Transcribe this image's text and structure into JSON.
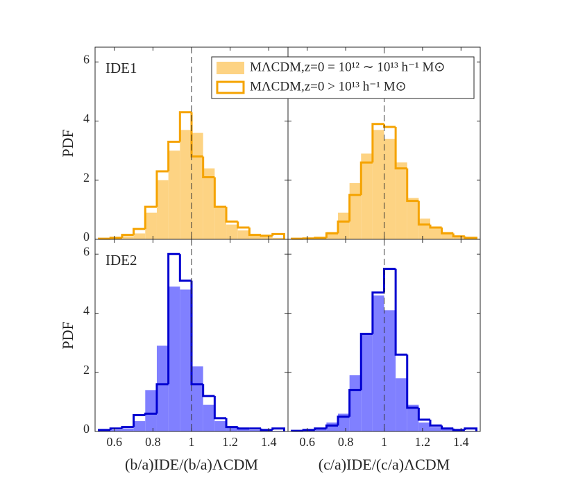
{
  "chart_data": [
    {
      "type": "histogram",
      "annotation": "IDE1",
      "ylabel": "PDF",
      "bins": [
        0.52,
        0.58,
        0.64,
        0.7,
        0.76,
        0.82,
        0.88,
        0.94,
        1.0,
        1.06,
        1.12,
        1.18,
        1.24,
        1.3,
        1.36,
        1.42,
        1.48
      ],
      "series": [
        {
          "name": "MΛCDM,z=0 = 10¹² ∼ 10¹³ h⁻¹ M⊙",
          "style": "filled",
          "color": "#fdd383",
          "values": [
            0.0,
            0.02,
            0.1,
            0.2,
            0.9,
            2.0,
            3.0,
            3.7,
            3.6,
            2.4,
            1.1,
            0.5,
            0.3,
            0.15,
            0.1,
            0.05
          ]
        },
        {
          "name": "MΛCDM,z=0 > 10¹³ h⁻¹ M⊙",
          "style": "step",
          "color": "#f5a300",
          "values": [
            0.02,
            0.05,
            0.15,
            0.35,
            1.1,
            2.3,
            3.3,
            4.3,
            2.8,
            2.1,
            1.1,
            0.6,
            0.4,
            0.15,
            0.12,
            0.18
          ]
        }
      ],
      "vline": 1,
      "xlim": [
        0.5,
        1.5
      ],
      "ylim": [
        0,
        6.5
      ],
      "xticks": [
        0.6,
        0.8,
        1,
        1.2,
        1.4
      ],
      "yticks": [
        0,
        2,
        4,
        6
      ]
    },
    {
      "type": "histogram",
      "bins": [
        0.52,
        0.58,
        0.64,
        0.7,
        0.76,
        0.82,
        0.88,
        0.94,
        1.0,
        1.06,
        1.12,
        1.18,
        1.24,
        1.3,
        1.36,
        1.42,
        1.48
      ],
      "series": [
        {
          "style": "filled",
          "color": "#fdd383",
          "values": [
            0.01,
            0.03,
            0.08,
            0.25,
            0.9,
            1.9,
            2.9,
            3.7,
            3.4,
            2.6,
            1.4,
            0.7,
            0.4,
            0.25,
            0.1,
            0.05
          ]
        },
        {
          "style": "step",
          "color": "#f5a300",
          "values": [
            0.02,
            0.03,
            0.05,
            0.2,
            0.6,
            1.5,
            2.6,
            3.9,
            3.8,
            2.4,
            1.3,
            0.5,
            0.4,
            0.2,
            0.1,
            0.05
          ]
        }
      ],
      "vline": 1,
      "xlim": [
        0.5,
        1.5
      ],
      "ylim": [
        0,
        6.5
      ],
      "xticks": [
        0.6,
        0.8,
        1,
        1.2,
        1.4
      ],
      "yticks": [
        0,
        2,
        4,
        6
      ]
    },
    {
      "type": "histogram",
      "annotation": "IDE2",
      "ylabel": "PDF",
      "xlabel": "(b/a)IDE/(b/a)ΛCDM",
      "bins": [
        0.52,
        0.58,
        0.64,
        0.7,
        0.76,
        0.82,
        0.88,
        0.94,
        1.0,
        1.06,
        1.12,
        1.18,
        1.24,
        1.3,
        1.36,
        1.42,
        1.48
      ],
      "series": [
        {
          "style": "filled",
          "color": "#8080ff",
          "values": [
            0.02,
            0.05,
            0.1,
            0.35,
            1.4,
            2.9,
            4.9,
            4.8,
            2.2,
            0.9,
            0.35,
            0.15,
            0.08,
            0.05,
            0.03,
            0.02
          ]
        },
        {
          "style": "step",
          "color": "#0000d0",
          "values": [
            0.05,
            0.1,
            0.15,
            0.55,
            0.6,
            1.6,
            6.0,
            5.1,
            1.6,
            1.2,
            0.45,
            0.15,
            0.1,
            0.1,
            0.05,
            0.1
          ]
        }
      ],
      "vline": 1,
      "xlim": [
        0.5,
        1.5
      ],
      "ylim": [
        0,
        6.5
      ],
      "xticks": [
        0.6,
        0.8,
        1,
        1.2,
        1.4
      ],
      "yticks": [
        0,
        2,
        4,
        6
      ]
    },
    {
      "type": "histogram",
      "xlabel": "(c/a)IDE/(c/a)ΛCDM",
      "bins": [
        0.52,
        0.58,
        0.64,
        0.7,
        0.76,
        0.82,
        0.88,
        0.94,
        1.0,
        1.06,
        1.12,
        1.18,
        1.24,
        1.3,
        1.36,
        1.42,
        1.48
      ],
      "series": [
        {
          "style": "filled",
          "color": "#8080ff",
          "values": [
            0.02,
            0.03,
            0.1,
            0.3,
            0.6,
            1.9,
            3.3,
            4.6,
            4.1,
            1.8,
            0.9,
            0.3,
            0.15,
            0.08,
            0.03,
            0.02
          ]
        },
        {
          "style": "step",
          "color": "#0000d0",
          "values": [
            0.02,
            0.05,
            0.1,
            0.2,
            0.5,
            1.4,
            3.3,
            4.7,
            5.5,
            2.6,
            0.8,
            0.4,
            0.2,
            0.1,
            0.05,
            0.1
          ]
        }
      ],
      "vline": 1,
      "xlim": [
        0.5,
        1.5
      ],
      "ylim": [
        0,
        6.5
      ],
      "xticks": [
        0.6,
        0.8,
        1,
        1.2,
        1.4
      ],
      "yticks": [
        0,
        2,
        4,
        6
      ]
    }
  ]
}
